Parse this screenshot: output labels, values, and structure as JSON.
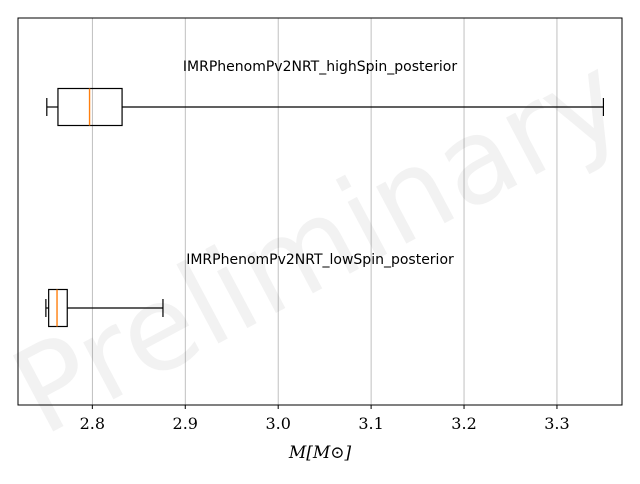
{
  "watermark": "Preliminary",
  "chart_data": {
    "type": "boxplot",
    "orientation": "horizontal",
    "xlabel": "M[M⊙]",
    "xlim": [
      2.72,
      3.37
    ],
    "xticks": [
      2.8,
      2.9,
      3.0,
      3.1,
      3.2,
      3.3
    ],
    "xtick_labels": [
      "2.8",
      "2.9",
      "3.0",
      "3.1",
      "3.2",
      "3.3"
    ],
    "grid": "vertical",
    "series": [
      {
        "name": "IMRPhenomPv2NRT_highSpin_posterior",
        "whisker_low": 2.751,
        "q1": 2.763,
        "median": 2.797,
        "q3": 2.832,
        "whisker_high": 3.35
      },
      {
        "name": "IMRPhenomPv2NRT_lowSpin_posterior",
        "whisker_low": 2.75,
        "q1": 2.753,
        "median": 2.762,
        "q3": 2.773,
        "whisker_high": 2.876
      }
    ],
    "colors": {
      "box": "#000000",
      "median": "#ff7f0e",
      "grid": "#b0b0b0",
      "frame": "#000000"
    }
  }
}
